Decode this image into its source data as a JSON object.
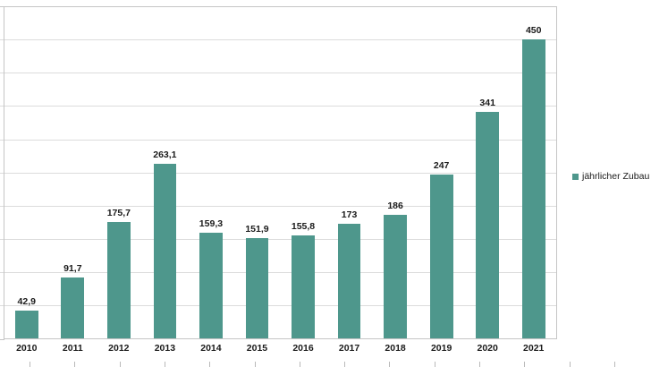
{
  "chart": {
    "legend_label": "jährlicher Zubau",
    "colors": {
      "bar": "#4e978c",
      "gridline": "#dcdcdc",
      "plot_border": "#c5c5c5",
      "text": "#1a1a1a",
      "bottom_tick": "#b9b9b9",
      "background": "#ffffff"
    }
  },
  "chart_data": {
    "type": "bar",
    "title": "",
    "xlabel": "",
    "ylabel": "",
    "categories": [
      "2010",
      "2011",
      "2012",
      "2013",
      "2014",
      "2015",
      "2016",
      "2017",
      "2018",
      "2019",
      "2020",
      "2021"
    ],
    "series": [
      {
        "name": "jährlicher Zubau",
        "values": [
          42.9,
          91.7,
          175.7,
          263.1,
          159.3,
          151.9,
          155.8,
          173,
          186,
          247,
          341,
          450
        ]
      }
    ],
    "value_labels": [
      "42,9",
      "91,7",
      "175,7",
      "263,1",
      "159,3",
      "151,9",
      "155,8",
      "173",
      "186",
      "247",
      "341",
      "450"
    ],
    "ylim": [
      0,
      500
    ],
    "grid_interval": 50,
    "grid": true,
    "y_axis_labels_visible": false,
    "legend_position": "right"
  }
}
